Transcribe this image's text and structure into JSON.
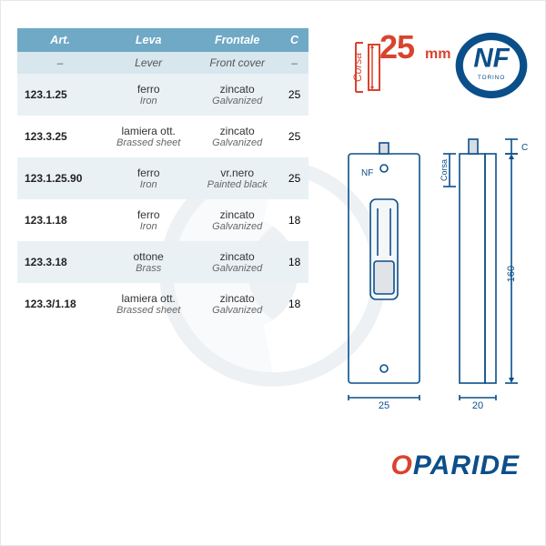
{
  "table": {
    "header_bg": "#6fa9c6",
    "alt_row_bg": "#e9f1f5",
    "columns": [
      "Art.",
      "Leva",
      "Frontale",
      "C"
    ],
    "subhead": [
      "–",
      "Lever",
      "Front cover",
      "–"
    ],
    "rows": [
      {
        "art": "123.1.25",
        "leva": "ferro",
        "leva_en": "Iron",
        "frontale": "zincato",
        "frontale_en": "Galvanized",
        "c": "25",
        "alt": true
      },
      {
        "art": "123.3.25",
        "leva": "lamiera ott.",
        "leva_en": "Brassed sheet",
        "frontale": "zincato",
        "frontale_en": "Galvanized",
        "c": "25",
        "alt": false
      },
      {
        "art": "123.1.25.90",
        "leva": "ferro",
        "leva_en": "Iron",
        "frontale": "vr.nero",
        "frontale_en": "Painted black",
        "c": "25",
        "alt": true
      },
      {
        "art": "123.1.18",
        "leva": "ferro",
        "leva_en": "Iron",
        "frontale": "zincato",
        "frontale_en": "Galvanized",
        "c": "18",
        "alt": false
      },
      {
        "art": "123.3.18",
        "leva": "ottone",
        "leva_en": "Brass",
        "frontale": "zincato",
        "frontale_en": "Galvanized",
        "c": "18",
        "alt": true
      },
      {
        "art": "123.3/1.18",
        "leva": "lamiera ott.",
        "leva_en": "Brassed sheet",
        "frontale": "zincato",
        "frontale_en": "Galvanized",
        "c": "18",
        "alt": false
      }
    ]
  },
  "callout": {
    "label": "Corsa",
    "value": "25",
    "unit": "mm",
    "color": "#d9432e"
  },
  "nf_logo": {
    "text_top": "NF",
    "text_bottom": "TORINO",
    "fill": "#0b4f8a"
  },
  "drawing": {
    "stroke": "#0b4f8a",
    "dims": {
      "width_left": "25",
      "width_right": "20",
      "height": "160",
      "c_label": "C",
      "corsa_label": "Corsa"
    }
  },
  "brand": {
    "first": "O",
    "rest": "PARIDE",
    "color_first": "#d9432e",
    "color_rest": "#0b4f8a"
  }
}
